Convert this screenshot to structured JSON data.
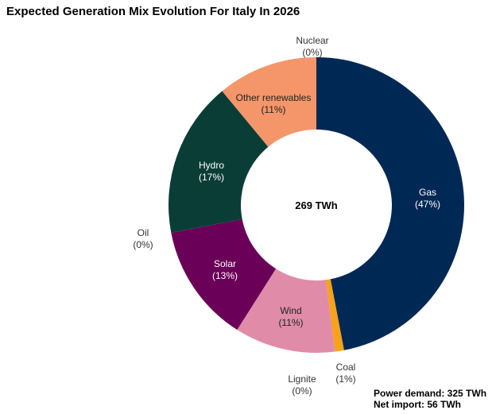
{
  "title": "Expected Generation Mix Evolution For Italy In 2026",
  "chart_data": {
    "type": "pie",
    "variant": "donut",
    "title": "Expected Generation Mix Evolution For Italy In 2026",
    "center_label": "269 TWh",
    "slices": [
      {
        "label": "Gas",
        "value": 47,
        "value_label": "(47%)",
        "color": "#002855",
        "text_color": "#ffffff"
      },
      {
        "label": "Coal",
        "value": 1,
        "value_label": "(1%)",
        "color": "#f7a21b",
        "text_color": "#333333"
      },
      {
        "label": "Lignite",
        "value": 0,
        "value_label": "(0%)",
        "color": "#a5a5a5",
        "text_color": "#333333"
      },
      {
        "label": "Wind",
        "value": 11,
        "value_label": "(11%)",
        "color": "#e08ca8",
        "text_color": "#222222"
      },
      {
        "label": "Solar",
        "value": 13,
        "value_label": "(13%)",
        "color": "#6a0057",
        "text_color": "#ffffff"
      },
      {
        "label": "Oil",
        "value": 0,
        "value_label": "(0%)",
        "color": "#7f7f7f",
        "text_color": "#333333"
      },
      {
        "label": "Hydro",
        "value": 17,
        "value_label": "(17%)",
        "color": "#0a3d36",
        "text_color": "#ffffff"
      },
      {
        "label": "Other renewables",
        "value": 11,
        "value_label": "(11%)",
        "color": "#f4966a",
        "text_color": "#222222"
      },
      {
        "label": "Nuclear",
        "value": 0,
        "value_label": "(0%)",
        "color": "#cccccc",
        "text_color": "#333333"
      }
    ]
  },
  "notes": {
    "power_demand": "Power demand: 325 TWh",
    "net_import": "Net import: 56 TWh"
  }
}
